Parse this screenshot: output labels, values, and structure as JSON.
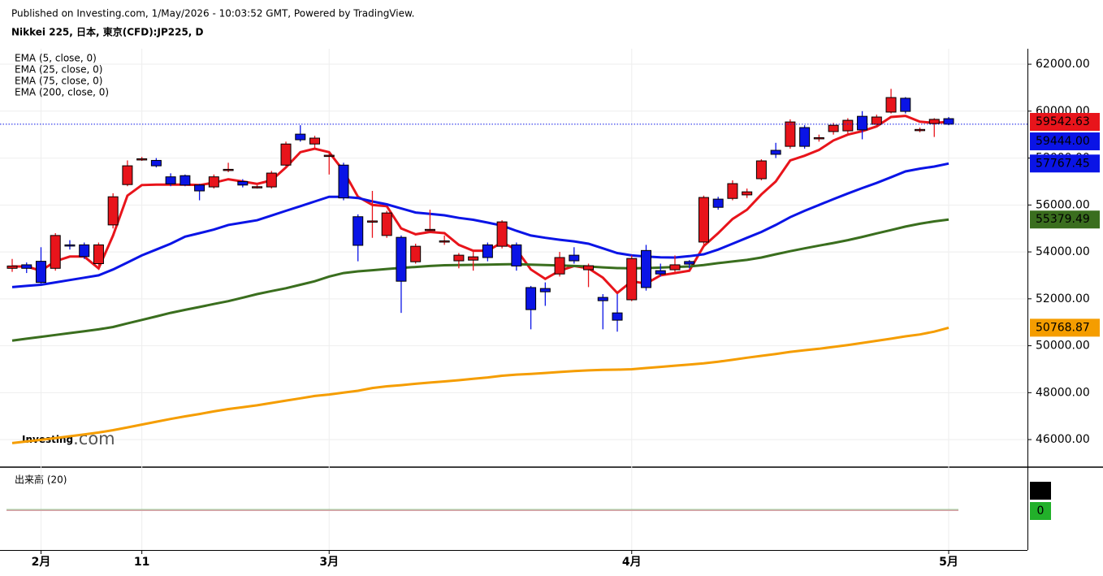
{
  "header": {
    "published": "Published on Investing.com, 1/May/2026 - 10:03:52 GMT, Powered by TradingView.",
    "symbol": "Nikkei 225, 日本, 東京(CFD):JP225, D"
  },
  "chart_data": {
    "type": "candlestick",
    "categories": [
      null,
      null,
      "2月",
      null,
      null,
      null,
      null,
      null,
      null,
      "11",
      null,
      null,
      null,
      null,
      null,
      null,
      null,
      null,
      null,
      null,
      null,
      null,
      "3月",
      null,
      null,
      null,
      null,
      null,
      null,
      null,
      null,
      null,
      null,
      null,
      null,
      null,
      null,
      null,
      null,
      null,
      null,
      null,
      null,
      "4月",
      null,
      null,
      null,
      null,
      null,
      null,
      null,
      null,
      null,
      null,
      null,
      null,
      null,
      null,
      null,
      null,
      null,
      null,
      null,
      null,
      null,
      "5月"
    ],
    "open": [
      53300,
      53450,
      53600,
      53300,
      54300,
      54300,
      53500,
      55150,
      56870,
      57930,
      57900,
      57200,
      57250,
      56850,
      56770,
      57480,
      57000,
      56760,
      56770,
      57700,
      59020,
      58600,
      58080,
      57700,
      55500,
      55280,
      54700,
      54620,
      53580,
      54920,
      54430,
      53620,
      53650,
      54300,
      54240,
      54300,
      52480,
      52440,
      53060,
      53860,
      53240,
      52060,
      51400,
      51960,
      54060,
      53200,
      53240,
      53590,
      54420,
      56250,
      56280,
      56430,
      57120,
      58330,
      58500,
      59300,
      58830,
      59130,
      59160,
      59780,
      59440,
      59960,
      60550,
      59180,
      59470,
      59680
    ],
    "high": [
      53700,
      53550,
      54200,
      54800,
      54500,
      54400,
      54400,
      56500,
      57900,
      58050,
      58000,
      57350,
      57300,
      56900,
      57300,
      57800,
      57100,
      56850,
      57450,
      58700,
      59400,
      58950,
      58300,
      57800,
      55600,
      56600,
      55750,
      54700,
      54350,
      55800,
      54700,
      53950,
      54000,
      54400,
      55350,
      54400,
      52550,
      52700,
      54000,
      54200,
      53500,
      52200,
      52200,
      53850,
      54300,
      53500,
      53850,
      53650,
      56400,
      56350,
      57050,
      56700,
      57950,
      58650,
      59650,
      59400,
      59000,
      59500,
      59700,
      60000,
      59850,
      60950,
      60600,
      59300,
      59700,
      59750
    ],
    "low": [
      53150,
      53100,
      52600,
      53200,
      54100,
      53700,
      53400,
      55000,
      56800,
      57880,
      57600,
      56800,
      56800,
      56200,
      56700,
      57400,
      56750,
      56700,
      56700,
      57600,
      58700,
      58400,
      57300,
      56200,
      53600,
      54600,
      54600,
      51400,
      53500,
      54800,
      54300,
      53300,
      53200,
      53600,
      54150,
      53200,
      50700,
      51700,
      52950,
      53500,
      52500,
      50700,
      50600,
      51900,
      52350,
      52950,
      53150,
      53300,
      54300,
      55800,
      56200,
      56300,
      57050,
      58000,
      58400,
      58400,
      58700,
      59000,
      59050,
      58800,
      59350,
      59900,
      59900,
      59100,
      58900,
      59400
    ],
    "close": [
      53400,
      53300,
      52700,
      54700,
      54250,
      53800,
      54300,
      56350,
      57670,
      57970,
      57670,
      56900,
      56850,
      56600,
      57200,
      57520,
      56850,
      56780,
      57360,
      58600,
      58780,
      58850,
      58120,
      56300,
      54280,
      55320,
      55660,
      52750,
      54240,
      54960,
      54470,
      53860,
      53790,
      53760,
      55280,
      53400,
      51540,
      52300,
      53760,
      53620,
      53410,
      51920,
      51090,
      53720,
      52480,
      53060,
      53450,
      53480,
      56320,
      55900,
      56910,
      56560,
      57880,
      58160,
      59540,
      58500,
      58870,
      59400,
      59610,
      59200,
      59750,
      60580,
      59990,
      59220,
      59650,
      59444
    ],
    "up_color": "#e8141b",
    "down_color": "#0a14e6",
    "last_label": "59444.00",
    "series": [
      {
        "name": "EMA (5, close, 0)",
        "color": "#e8141b",
        "values": [
          53380,
          53380,
          53200,
          53600,
          53800,
          53800,
          53300,
          54700,
          56400,
          56850,
          56870,
          56870,
          56870,
          56850,
          56950,
          57100,
          57000,
          56900,
          57050,
          57600,
          58250,
          58400,
          58250,
          57450,
          56350,
          56000,
          55950,
          55000,
          54750,
          54850,
          54800,
          54300,
          54050,
          54050,
          54400,
          54100,
          53250,
          52850,
          53200,
          53400,
          53300,
          52900,
          52250,
          52750,
          52650,
          53000,
          53100,
          53200,
          54250,
          54800,
          55400,
          55800,
          56450,
          57000,
          57900,
          58100,
          58350,
          58750,
          59000,
          59150,
          59350,
          59750,
          59800,
          59550,
          59500,
          59542.63
        ]
      },
      {
        "name": "EMA (25, close, 0)",
        "color": "#0a14e6",
        "values": [
          52500,
          52550,
          52600,
          52700,
          52800,
          52900,
          53000,
          53250,
          53550,
          53850,
          54100,
          54350,
          54650,
          54800,
          54950,
          55150,
          55250,
          55350,
          55550,
          55750,
          55950,
          56150,
          56350,
          56350,
          56300,
          56150,
          56030,
          55850,
          55680,
          55620,
          55560,
          55450,
          55370,
          55250,
          55120,
          54900,
          54700,
          54600,
          54520,
          54450,
          54350,
          54150,
          53950,
          53850,
          53800,
          53770,
          53760,
          53820,
          53900,
          54100,
          54350,
          54600,
          54850,
          55150,
          55480,
          55750,
          56000,
          56250,
          56490,
          56720,
          56940,
          57180,
          57430,
          57550,
          57640,
          57767.45
        ]
      },
      {
        "name": "EMA (75, close, 0)",
        "color": "#3a6e1e",
        "values": [
          50220,
          50300,
          50380,
          50460,
          50540,
          50620,
          50700,
          50800,
          50950,
          51100,
          51250,
          51400,
          51530,
          51650,
          51780,
          51900,
          52050,
          52200,
          52330,
          52450,
          52600,
          52750,
          52950,
          53100,
          53170,
          53220,
          53270,
          53320,
          53360,
          53400,
          53430,
          53440,
          53450,
          53460,
          53470,
          53480,
          53460,
          53440,
          53420,
          53400,
          53380,
          53340,
          53310,
          53300,
          53310,
          53330,
          53360,
          53380,
          53440,
          53520,
          53590,
          53660,
          53760,
          53900,
          54030,
          54150,
          54270,
          54380,
          54500,
          54640,
          54790,
          54930,
          55080,
          55200,
          55300,
          55379.49
        ]
      },
      {
        "name": "EMA (200, close, 0)",
        "color": "#f59d00",
        "values": [
          45850,
          45920,
          45990,
          46060,
          46140,
          46220,
          46300,
          46400,
          46520,
          46640,
          46760,
          46880,
          46990,
          47090,
          47200,
          47300,
          47380,
          47460,
          47560,
          47660,
          47760,
          47860,
          47920,
          48000,
          48080,
          48200,
          48270,
          48320,
          48380,
          48430,
          48480,
          48530,
          48590,
          48650,
          48720,
          48770,
          48800,
          48840,
          48880,
          48920,
          48950,
          48970,
          48980,
          49000,
          49050,
          49100,
          49150,
          49200,
          49250,
          49320,
          49400,
          49490,
          49570,
          49650,
          49740,
          49810,
          49870,
          49950,
          50030,
          50120,
          50210,
          50300,
          50400,
          50480,
          50600,
          50768.87
        ]
      }
    ],
    "ylim": [
      44860,
      62660
    ],
    "yticks": [
      {
        "value": 46000,
        "label": "46000.00"
      },
      {
        "value": 48000,
        "label": "48000.00"
      },
      {
        "value": 50000,
        "label": "50000.00"
      },
      {
        "value": 52000,
        "label": "52000.00"
      },
      {
        "value": 54000,
        "label": "54000.00"
      },
      {
        "value": 56000,
        "label": "56000.00"
      },
      {
        "value": 58000,
        "label": "58000.00"
      },
      {
        "value": 60000,
        "label": "60000.00"
      },
      {
        "value": 62000,
        "label": "62000.00"
      }
    ],
    "grid": true,
    "volume": {
      "title": "出来高 (20)",
      "value": 0,
      "ma": 0,
      "value_color": "#000000",
      "ma_color": "#22b02a"
    },
    "watermark": {
      "brand": "Investing",
      "suffix": ".com"
    }
  }
}
